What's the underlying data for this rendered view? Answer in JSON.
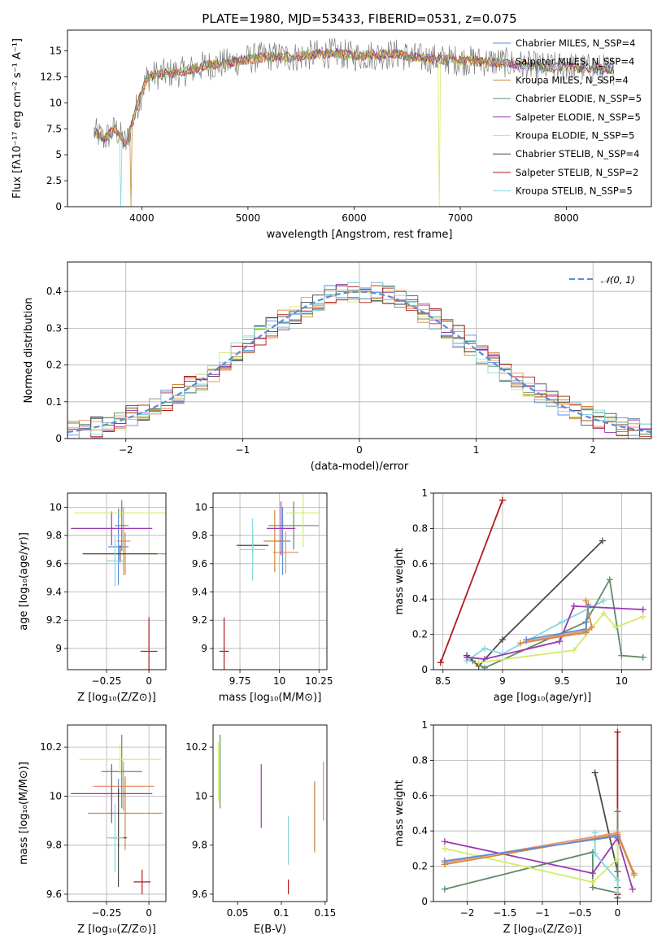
{
  "colors": {
    "chabrier_miles": "#5a8dd6",
    "salpeter_miles": "#e8906b",
    "kroupa_miles": "#d08a3a",
    "chabrier_elodie": "#5f8d6a",
    "salpeter_elodie": "#9b38b0",
    "kroupa_elodie": "#d6ea6a",
    "chabrier_stelib": "#4a4a4a",
    "salpeter_stelib": "#b01c1c",
    "kroupa_stelib": "#86d6e0",
    "normal": "#5a8dd6",
    "grid": "#b0b0b0"
  },
  "chart_data": [
    {
      "id": "spectrum",
      "type": "line",
      "title": "PLATE=1980, MJD=53433, FIBERID=0531, z=0.075",
      "xlabel": "wavelength [Angstrom, rest frame]",
      "ylabel": "Flux [fλ10⁻¹⁷ erg cm⁻² s⁻¹ A⁻¹]",
      "xlim": [
        3300,
        8800
      ],
      "ylim": [
        0,
        17
      ],
      "xticks": [
        4000,
        5000,
        6000,
        7000,
        8000
      ],
      "yticks": [
        0.0,
        2.5,
        5.0,
        7.5,
        10.0,
        12.5,
        15.0
      ],
      "grid": false,
      "legend_position": "right",
      "continuum": [
        [
          3550,
          7.2
        ],
        [
          3650,
          6.5
        ],
        [
          3750,
          7.5
        ],
        [
          3850,
          6.0
        ],
        [
          3950,
          9.5
        ],
        [
          4050,
          12.5
        ],
        [
          4200,
          12.8
        ],
        [
          4400,
          13.0
        ],
        [
          4600,
          13.6
        ],
        [
          4800,
          13.8
        ],
        [
          5000,
          14.2
        ],
        [
          5200,
          14.5
        ],
        [
          5400,
          14.4
        ],
        [
          5600,
          14.6
        ],
        [
          5800,
          14.8
        ],
        [
          6000,
          14.5
        ],
        [
          6200,
          14.6
        ],
        [
          6400,
          14.7
        ],
        [
          6600,
          14.3
        ],
        [
          6800,
          14.2
        ],
        [
          7000,
          14.1
        ],
        [
          7200,
          14.0
        ],
        [
          7400,
          13.9
        ],
        [
          7600,
          13.6
        ],
        [
          7800,
          13.4
        ],
        [
          8000,
          13.5
        ],
        [
          8200,
          13.3
        ],
        [
          8400,
          13.2
        ]
      ],
      "legend": [
        {
          "label": "Chabrier MILES, N_SSP=4",
          "color": "chabrier_miles"
        },
        {
          "label": "Salpeter MILES, N_SSP=4",
          "color": "salpeter_miles"
        },
        {
          "label": "Kroupa MILES, N_SSP=4",
          "color": "kroupa_miles"
        },
        {
          "label": "Chabrier ELODIE, N_SSP=5",
          "color": "chabrier_elodie"
        },
        {
          "label": "Salpeter ELODIE, N_SSP=5",
          "color": "salpeter_elodie"
        },
        {
          "label": "Kroupa ELODIE, N_SSP=5",
          "color": "kroupa_elodie"
        },
        {
          "label": "Chabrier STELIB, N_SSP=4",
          "color": "chabrier_stelib"
        },
        {
          "label": "Salpeter STELIB, N_SSP=2",
          "color": "salpeter_stelib"
        },
        {
          "label": "Kroupa STELIB, N_SSP=5",
          "color": "kroupa_stelib"
        }
      ]
    },
    {
      "id": "residuals",
      "type": "line",
      "xlabel": "(data-model)/error",
      "ylabel": "Normed distribution",
      "xlim": [
        -2.5,
        2.5
      ],
      "ylim": [
        0,
        0.48
      ],
      "xticks": [
        -2,
        -1,
        0,
        1,
        2
      ],
      "yticks": [
        0.0,
        0.1,
        0.2,
        0.3,
        0.4
      ],
      "grid": true,
      "legend_position": "top-right",
      "legend": [
        {
          "label": "𝒩(0, 1)",
          "color": "normal"
        }
      ]
    },
    {
      "id": "age_vs_Z",
      "type": "scatter",
      "xlabel": "Z [log₁₀(Z/Z⊙)]",
      "ylabel": "age  [log₁₀(age/yr)]",
      "xlim": [
        -0.48,
        0.1
      ],
      "ylim": [
        8.85,
        10.1
      ],
      "xticks": [
        -0.25,
        0.0
      ],
      "yticks": [
        9.0,
        9.2,
        9.4,
        9.6,
        9.8,
        10.0
      ],
      "grid": true,
      "points": [
        {
          "x": -0.18,
          "y": 9.72,
          "ex": 0.06,
          "ey": 0.27,
          "color": "chabrier_miles"
        },
        {
          "x": -0.15,
          "y": 9.76,
          "ex": 0.04,
          "ey": 0.24,
          "color": "salpeter_miles"
        },
        {
          "x": -0.14,
          "y": 9.67,
          "ex": 0.25,
          "ey": 0.15,
          "color": "kroupa_miles"
        },
        {
          "x": -0.16,
          "y": 9.87,
          "ex": 0.04,
          "ey": 0.18,
          "color": "chabrier_elodie"
        },
        {
          "x": -0.22,
          "y": 9.85,
          "ex": 0.24,
          "ey": 0.12,
          "color": "salpeter_elodie"
        },
        {
          "x": -0.17,
          "y": 9.96,
          "ex": 0.27,
          "ey": 0.04,
          "color": "kroupa_elodie"
        },
        {
          "x": -0.17,
          "y": 9.67,
          "ex": 0.22,
          "ey": 0.06,
          "color": "chabrier_stelib"
        },
        {
          "x": 0.0,
          "y": 8.98,
          "ex": 0.05,
          "ey": 0.24,
          "color": "salpeter_stelib"
        },
        {
          "x": -0.2,
          "y": 9.62,
          "ex": 0.05,
          "ey": 0.18,
          "color": "kroupa_stelib"
        }
      ]
    },
    {
      "id": "age_vs_mass",
      "type": "scatter",
      "xlabel": "mass [log₁₀(M/M⊙)]",
      "ylabel": "",
      "xlim": [
        9.58,
        10.3
      ],
      "ylim": [
        8.85,
        10.1
      ],
      "xticks": [
        9.75,
        10.0,
        10.25
      ],
      "yticks": [
        9.0,
        9.2,
        9.4,
        9.6,
        9.8,
        10.0
      ],
      "grid": true,
      "points": [
        {
          "x": 10.02,
          "y": 9.76,
          "ex": 0.05,
          "ey": 0.24,
          "color": "chabrier_miles"
        },
        {
          "x": 10.04,
          "y": 9.68,
          "ex": 0.08,
          "ey": 0.15,
          "color": "salpeter_miles"
        },
        {
          "x": 9.97,
          "y": 9.76,
          "ex": 0.07,
          "ey": 0.22,
          "color": "kroupa_miles"
        },
        {
          "x": 10.09,
          "y": 9.87,
          "ex": 0.16,
          "ey": 0.17,
          "color": "chabrier_elodie"
        },
        {
          "x": 10.01,
          "y": 9.85,
          "ex": 0.09,
          "ey": 0.19,
          "color": "salpeter_elodie"
        },
        {
          "x": 10.15,
          "y": 9.96,
          "ex": 0.11,
          "ey": 0.24,
          "color": "kroupa_elodie"
        },
        {
          "x": 9.83,
          "y": 9.73,
          "ex": 0.1,
          "ey": 0.06,
          "color": "chabrier_stelib"
        },
        {
          "x": 9.65,
          "y": 8.98,
          "ex": 0.03,
          "ey": 0.24,
          "color": "salpeter_stelib"
        },
        {
          "x": 9.83,
          "y": 9.7,
          "ex": 0.08,
          "ey": 0.22,
          "color": "kroupa_stelib"
        }
      ]
    },
    {
      "id": "weight_vs_age",
      "type": "line",
      "xlabel": "age  [log₁₀(age/yr)]",
      "ylabel": "mass weight",
      "xlim": [
        8.42,
        10.25
      ],
      "ylim": [
        0,
        1.0
      ],
      "xticks": [
        8.5,
        9.0,
        9.5,
        10.0
      ],
      "yticks": [
        0.0,
        0.2,
        0.4,
        0.6,
        0.8,
        1.0
      ],
      "grid": true,
      "series": [
        {
          "color": "salpeter_stelib",
          "points": [
            [
              8.48,
              0.04
            ],
            [
              9.0,
              0.96
            ]
          ]
        },
        {
          "color": "chabrier_stelib",
          "points": [
            [
              8.7,
              0.08
            ],
            [
              8.8,
              0.02
            ],
            [
              9.0,
              0.17
            ],
            [
              9.84,
              0.73
            ]
          ]
        },
        {
          "color": "kroupa_stelib",
          "points": [
            [
              8.7,
              0.05
            ],
            [
              8.85,
              0.12
            ],
            [
              9.0,
              0.09
            ],
            [
              9.5,
              0.27
            ],
            [
              9.85,
              0.39
            ]
          ]
        },
        {
          "color": "chabrier_elodie",
          "points": [
            [
              8.75,
              0.05
            ],
            [
              8.85,
              0.01
            ],
            [
              9.7,
              0.27
            ],
            [
              9.9,
              0.51
            ],
            [
              10.0,
              0.08
            ],
            [
              10.18,
              0.07
            ]
          ]
        },
        {
          "color": "salpeter_elodie",
          "points": [
            [
              8.7,
              0.07
            ],
            [
              8.85,
              0.06
            ],
            [
              9.48,
              0.16
            ],
            [
              9.6,
              0.36
            ],
            [
              10.18,
              0.34
            ]
          ]
        },
        {
          "color": "kroupa_elodie",
          "points": [
            [
              8.8,
              0.04
            ],
            [
              9.6,
              0.11
            ],
            [
              9.85,
              0.32
            ],
            [
              9.95,
              0.24
            ],
            [
              10.18,
              0.3
            ]
          ]
        },
        {
          "color": "kroupa_miles",
          "points": [
            [
              9.15,
              0.15
            ],
            [
              9.7,
              0.21
            ],
            [
              9.75,
              0.24
            ],
            [
              9.7,
              0.39
            ]
          ]
        },
        {
          "color": "salpeter_miles",
          "points": [
            [
              9.2,
              0.16
            ],
            [
              9.7,
              0.22
            ],
            [
              9.72,
              0.37
            ]
          ]
        },
        {
          "color": "chabrier_miles",
          "points": [
            [
              9.2,
              0.17
            ],
            [
              9.7,
              0.23
            ],
            [
              9.72,
              0.36
            ]
          ]
        }
      ]
    },
    {
      "id": "mass_vs_Z",
      "type": "scatter",
      "xlabel": "Z [log₁₀(Z/Z⊙)]",
      "ylabel": "mass [log₁₀(M/M⊙)]",
      "xlim": [
        -0.48,
        0.1
      ],
      "ylim": [
        9.57,
        10.29
      ],
      "xticks": [
        -0.25,
        0.0
      ],
      "yticks": [
        9.6,
        9.8,
        10.0,
        10.2
      ],
      "grid": true,
      "points": [
        {
          "x": -0.18,
          "y": 9.93,
          "ex": 0.06,
          "ey": 0.14,
          "color": "chabrier_miles"
        },
        {
          "x": -0.15,
          "y": 10.04,
          "ex": 0.18,
          "ey": 0.1,
          "color": "salpeter_miles"
        },
        {
          "x": -0.14,
          "y": 9.93,
          "ex": 0.22,
          "ey": 0.15,
          "color": "kroupa_miles"
        },
        {
          "x": -0.16,
          "y": 10.1,
          "ex": 0.12,
          "ey": 0.15,
          "color": "chabrier_elodie"
        },
        {
          "x": -0.22,
          "y": 10.01,
          "ex": 0.24,
          "ey": 0.12,
          "color": "salpeter_elodie"
        },
        {
          "x": -0.17,
          "y": 10.15,
          "ex": 0.24,
          "ey": 0.06,
          "color": "kroupa_elodie"
        },
        {
          "x": -0.18,
          "y": 9.83,
          "ex": 0.05,
          "ey": 0.2,
          "color": "chabrier_stelib"
        },
        {
          "x": -0.04,
          "y": 9.65,
          "ex": 0.05,
          "ey": 0.05,
          "color": "salpeter_stelib"
        },
        {
          "x": -0.2,
          "y": 9.83,
          "ex": 0.05,
          "ey": 0.14,
          "color": "kroupa_stelib"
        }
      ]
    },
    {
      "id": "mass_vs_ebv",
      "type": "scatter",
      "xlabel": "E(B-V)",
      "ylabel": "",
      "xlim": [
        0.022,
        0.152
      ],
      "ylim": [
        9.57,
        10.29
      ],
      "xticks": [
        0.05,
        0.1,
        0.15
      ],
      "yticks": [
        9.6,
        9.8,
        10.0,
        10.2
      ],
      "grid": false,
      "points": [
        {
          "x": 0.138,
          "y": 9.92,
          "ey": 0.14,
          "color": "chabrier_miles"
        },
        {
          "x": 0.148,
          "y": 10.02,
          "ey": 0.12,
          "color": "salpeter_miles"
        },
        {
          "x": 0.138,
          "y": 9.91,
          "ey": 0.14,
          "color": "kroupa_miles"
        },
        {
          "x": 0.03,
          "y": 10.1,
          "ey": 0.15,
          "color": "chabrier_elodie"
        },
        {
          "x": 0.077,
          "y": 10.0,
          "ey": 0.13,
          "color": "salpeter_elodie"
        },
        {
          "x": 0.028,
          "y": 10.1,
          "ey": 0.12,
          "color": "kroupa_elodie"
        },
        {
          "x": 0.108,
          "y": 9.63,
          "ey": 0.03,
          "color": "salpeter_stelib"
        },
        {
          "x": 0.108,
          "y": 9.82,
          "ey": 0.1,
          "color": "kroupa_stelib"
        }
      ]
    },
    {
      "id": "weight_vs_Z",
      "type": "line",
      "xlabel": "Z [log₁₀(Z/Z⊙)]",
      "ylabel": "mass weight",
      "xlim": [
        -2.45,
        0.45
      ],
      "ylim": [
        0,
        1.0
      ],
      "xticks": [
        -2.0,
        -1.5,
        -1.0,
        -0.5,
        0.0
      ],
      "yticks": [
        0.0,
        0.2,
        0.4,
        0.6,
        0.8,
        1.0
      ],
      "grid": true,
      "series": [
        {
          "color": "salpeter_stelib",
          "points": [
            [
              0.0,
              0.04
            ],
            [
              0.0,
              0.96
            ]
          ]
        },
        {
          "color": "chabrier_stelib",
          "points": [
            [
              -0.3,
              0.73
            ],
            [
              0.0,
              0.17
            ],
            [
              0.0,
              0.02
            ],
            [
              0.0,
              0.08
            ]
          ]
        },
        {
          "color": "chabrier_elodie",
          "points": [
            [
              -2.3,
              0.07
            ],
            [
              -0.33,
              0.28
            ],
            [
              -0.33,
              0.08
            ],
            [
              0.0,
              0.05
            ],
            [
              0.0,
              0.51
            ]
          ]
        },
        {
          "color": "salpeter_elodie",
          "points": [
            [
              -2.3,
              0.34
            ],
            [
              -0.33,
              0.16
            ],
            [
              0.0,
              0.36
            ],
            [
              0.2,
              0.07
            ]
          ]
        },
        {
          "color": "kroupa_elodie",
          "points": [
            [
              -2.3,
              0.3
            ],
            [
              -0.33,
              0.11
            ],
            [
              0.0,
              0.24
            ],
            [
              0.0,
              0.32
            ]
          ]
        },
        {
          "color": "kroupa_stelib",
          "points": [
            [
              -0.3,
              0.39
            ],
            [
              -0.3,
              0.27
            ],
            [
              0.0,
              0.12
            ],
            [
              0.0,
              0.05
            ]
          ]
        },
        {
          "color": "salpeter_miles",
          "points": [
            [
              -2.3,
              0.22
            ],
            [
              0.0,
              0.39
            ],
            [
              0.22,
              0.16
            ]
          ]
        },
        {
          "color": "kroupa_miles",
          "points": [
            [
              -2.3,
              0.21
            ],
            [
              0.0,
              0.38
            ],
            [
              0.22,
              0.15
            ]
          ]
        },
        {
          "color": "chabrier_miles",
          "points": [
            [
              -2.3,
              0.23
            ],
            [
              0.0,
              0.37
            ]
          ]
        }
      ]
    }
  ]
}
